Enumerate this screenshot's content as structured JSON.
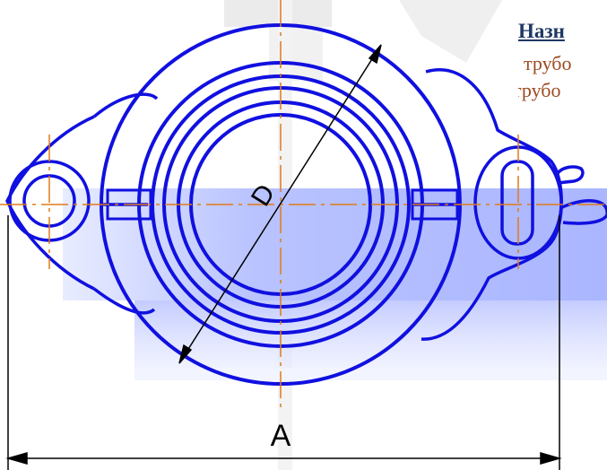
{
  "caption": {
    "heading": "Назн",
    "line1": "трубо",
    "line2": "трубо"
  },
  "dimensions": {
    "diameter_label": "D",
    "width_label": "A"
  },
  "colors": {
    "outline": "#1010e0",
    "centerline": "#e07a1a",
    "dimension": "#000000",
    "band_fill": "#b9c3ff",
    "band_fill_light": "#e6ebff",
    "watermark": "#e8e8e8",
    "heading_text": "#1f3864",
    "body_text": "#9c4a1e"
  }
}
